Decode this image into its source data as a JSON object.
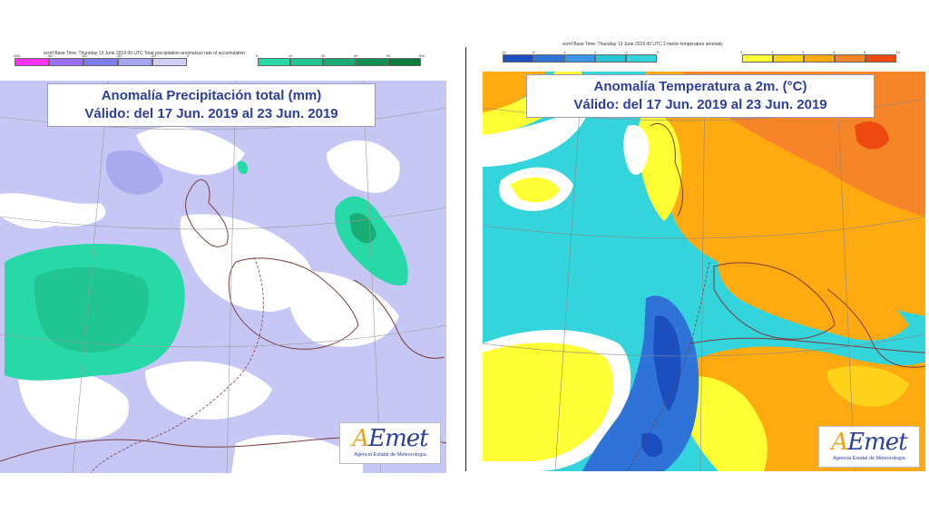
{
  "precip_map": {
    "header": "ecmf Base Time: Thursday 13 June 2019 00 UTC Total precipitation anomalous rate of accumulation",
    "title_line1": "Anomalía Precipitación total (mm)",
    "title_line2": "Válido: del 17 Jun. 2019 al 23 Jun. 2019",
    "scale_ticks_negative": [
      "-200",
      "-80",
      "-60",
      "-30",
      "-10",
      "0"
    ],
    "scale_ticks_positive": [
      "0",
      "10",
      "30",
      "60",
      "90",
      "200"
    ],
    "negative_colors": [
      "#ff33ff",
      "#9a6cff",
      "#7c7cf0",
      "#a4a4f2",
      "#cfcff7"
    ],
    "positive_colors": [
      "#27d9a6",
      "#20c591",
      "#1aad73",
      "#128e55",
      "#087a3c"
    ],
    "logo_text": "AEmet",
    "logo_subtext": "Agencia Estatal de Meteorología"
  },
  "temp_map": {
    "header": "ecmf Base Time: Thursday 13 June 2019 00 UTC 2 metre temperature anomaly",
    "title_line1": "Anomalía Temperatura a 2m. (°C)",
    "title_line2": "Válido: del 17 Jun. 2019 al 23 Jun. 2019",
    "scale_ticks_negative": [
      "-12",
      "-8",
      "-4",
      "-2",
      "-1",
      "0"
    ],
    "scale_ticks_positive": [
      "0",
      "1",
      "2",
      "4",
      "8",
      "12"
    ],
    "negative_colors": [
      "#1b4fbf",
      "#2f73d8",
      "#3b96e6",
      "#27c4d6",
      "#33d4dc"
    ],
    "positive_colors": [
      "#ffff33",
      "#ffd21a",
      "#ffaa11",
      "#f6852a",
      "#ee4a10"
    ],
    "logo_text": "AEmet",
    "logo_subtext": "Agencia Estatal de Meteorología"
  }
}
